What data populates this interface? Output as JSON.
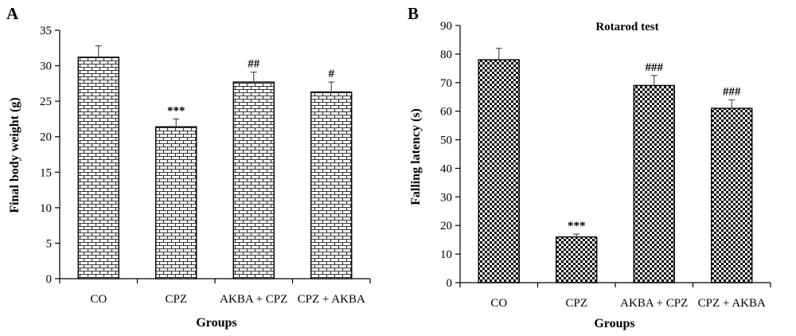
{
  "chart_data": [
    {
      "panel": "A",
      "type": "bar",
      "title": "",
      "xlabel": "Groups",
      "ylabel": "Final body weight (g)",
      "ylim": [
        0,
        35
      ],
      "yticks": [
        0,
        5,
        10,
        15,
        20,
        25,
        30,
        35
      ],
      "grid": false,
      "categories": [
        "CO",
        "CPZ",
        "AKBA + CPZ",
        "CPZ + AKBA"
      ],
      "values": [
        31.2,
        21.4,
        27.7,
        26.3
      ],
      "errors": [
        1.6,
        1.1,
        1.4,
        1.4
      ],
      "annotations": [
        "",
        "***",
        "##",
        "#"
      ],
      "pattern": "brick"
    },
    {
      "panel": "B",
      "type": "bar",
      "title": "Rotarod test",
      "xlabel": "Groups",
      "ylabel": "Falling latency (s)",
      "ylim": [
        0,
        90
      ],
      "yticks": [
        0,
        10,
        20,
        30,
        40,
        50,
        60,
        70,
        80,
        90
      ],
      "grid": false,
      "categories": [
        "CO",
        "CPZ",
        "AKBA + CPZ",
        "CPZ + AKBA"
      ],
      "values": [
        78,
        16,
        69,
        61
      ],
      "errors": [
        4,
        1,
        3.5,
        3
      ],
      "annotations": [
        "",
        "***",
        "###",
        "###"
      ],
      "pattern": "checker"
    }
  ]
}
